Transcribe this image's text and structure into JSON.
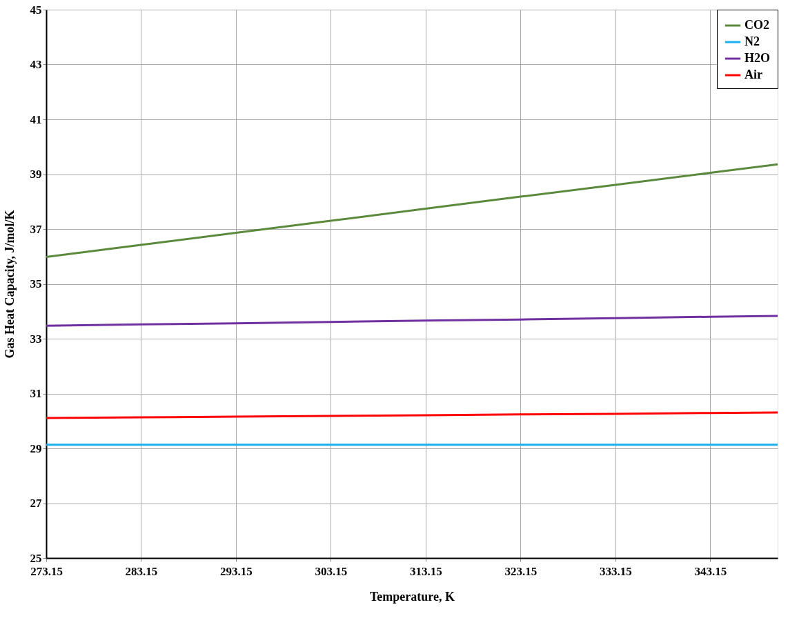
{
  "chart_data": {
    "type": "line",
    "xlabel": "Temperature, K",
    "ylabel": "Gas Heat Capacity, J/mol/K",
    "x": [
      273.15,
      283.15,
      293.15,
      303.15,
      313.15,
      323.15,
      333.15,
      343.15,
      350.25
    ],
    "series": [
      {
        "name": "CO2",
        "color": "#5b8a3c",
        "values": [
          35.98,
          36.42,
          36.86,
          37.3,
          37.74,
          38.18,
          38.61,
          39.05,
          39.36
        ]
      },
      {
        "name": "N2",
        "color": "#1ab0f0",
        "values": [
          29.13,
          29.13,
          29.13,
          29.13,
          29.13,
          29.13,
          29.13,
          29.13,
          29.13
        ]
      },
      {
        "name": "H2O",
        "color": "#7030a0",
        "values": [
          33.47,
          33.52,
          33.56,
          33.61,
          33.66,
          33.7,
          33.75,
          33.8,
          33.83
        ]
      },
      {
        "name": "Air",
        "color": "#ff0000",
        "values": [
          30.11,
          30.13,
          30.16,
          30.18,
          30.21,
          30.24,
          30.26,
          30.29,
          30.31
        ]
      }
    ],
    "xlim": [
      273.15,
      350.25
    ],
    "xticks": [
      273.15,
      283.15,
      293.15,
      303.15,
      313.15,
      323.15,
      333.15,
      343.15
    ],
    "ylim": [
      25,
      45
    ],
    "yticks": [
      25,
      27,
      29,
      31,
      33,
      35,
      37,
      39,
      41,
      43,
      45
    ],
    "grid": true,
    "legend": "top right",
    "marker": "none",
    "line_style": "solid"
  }
}
